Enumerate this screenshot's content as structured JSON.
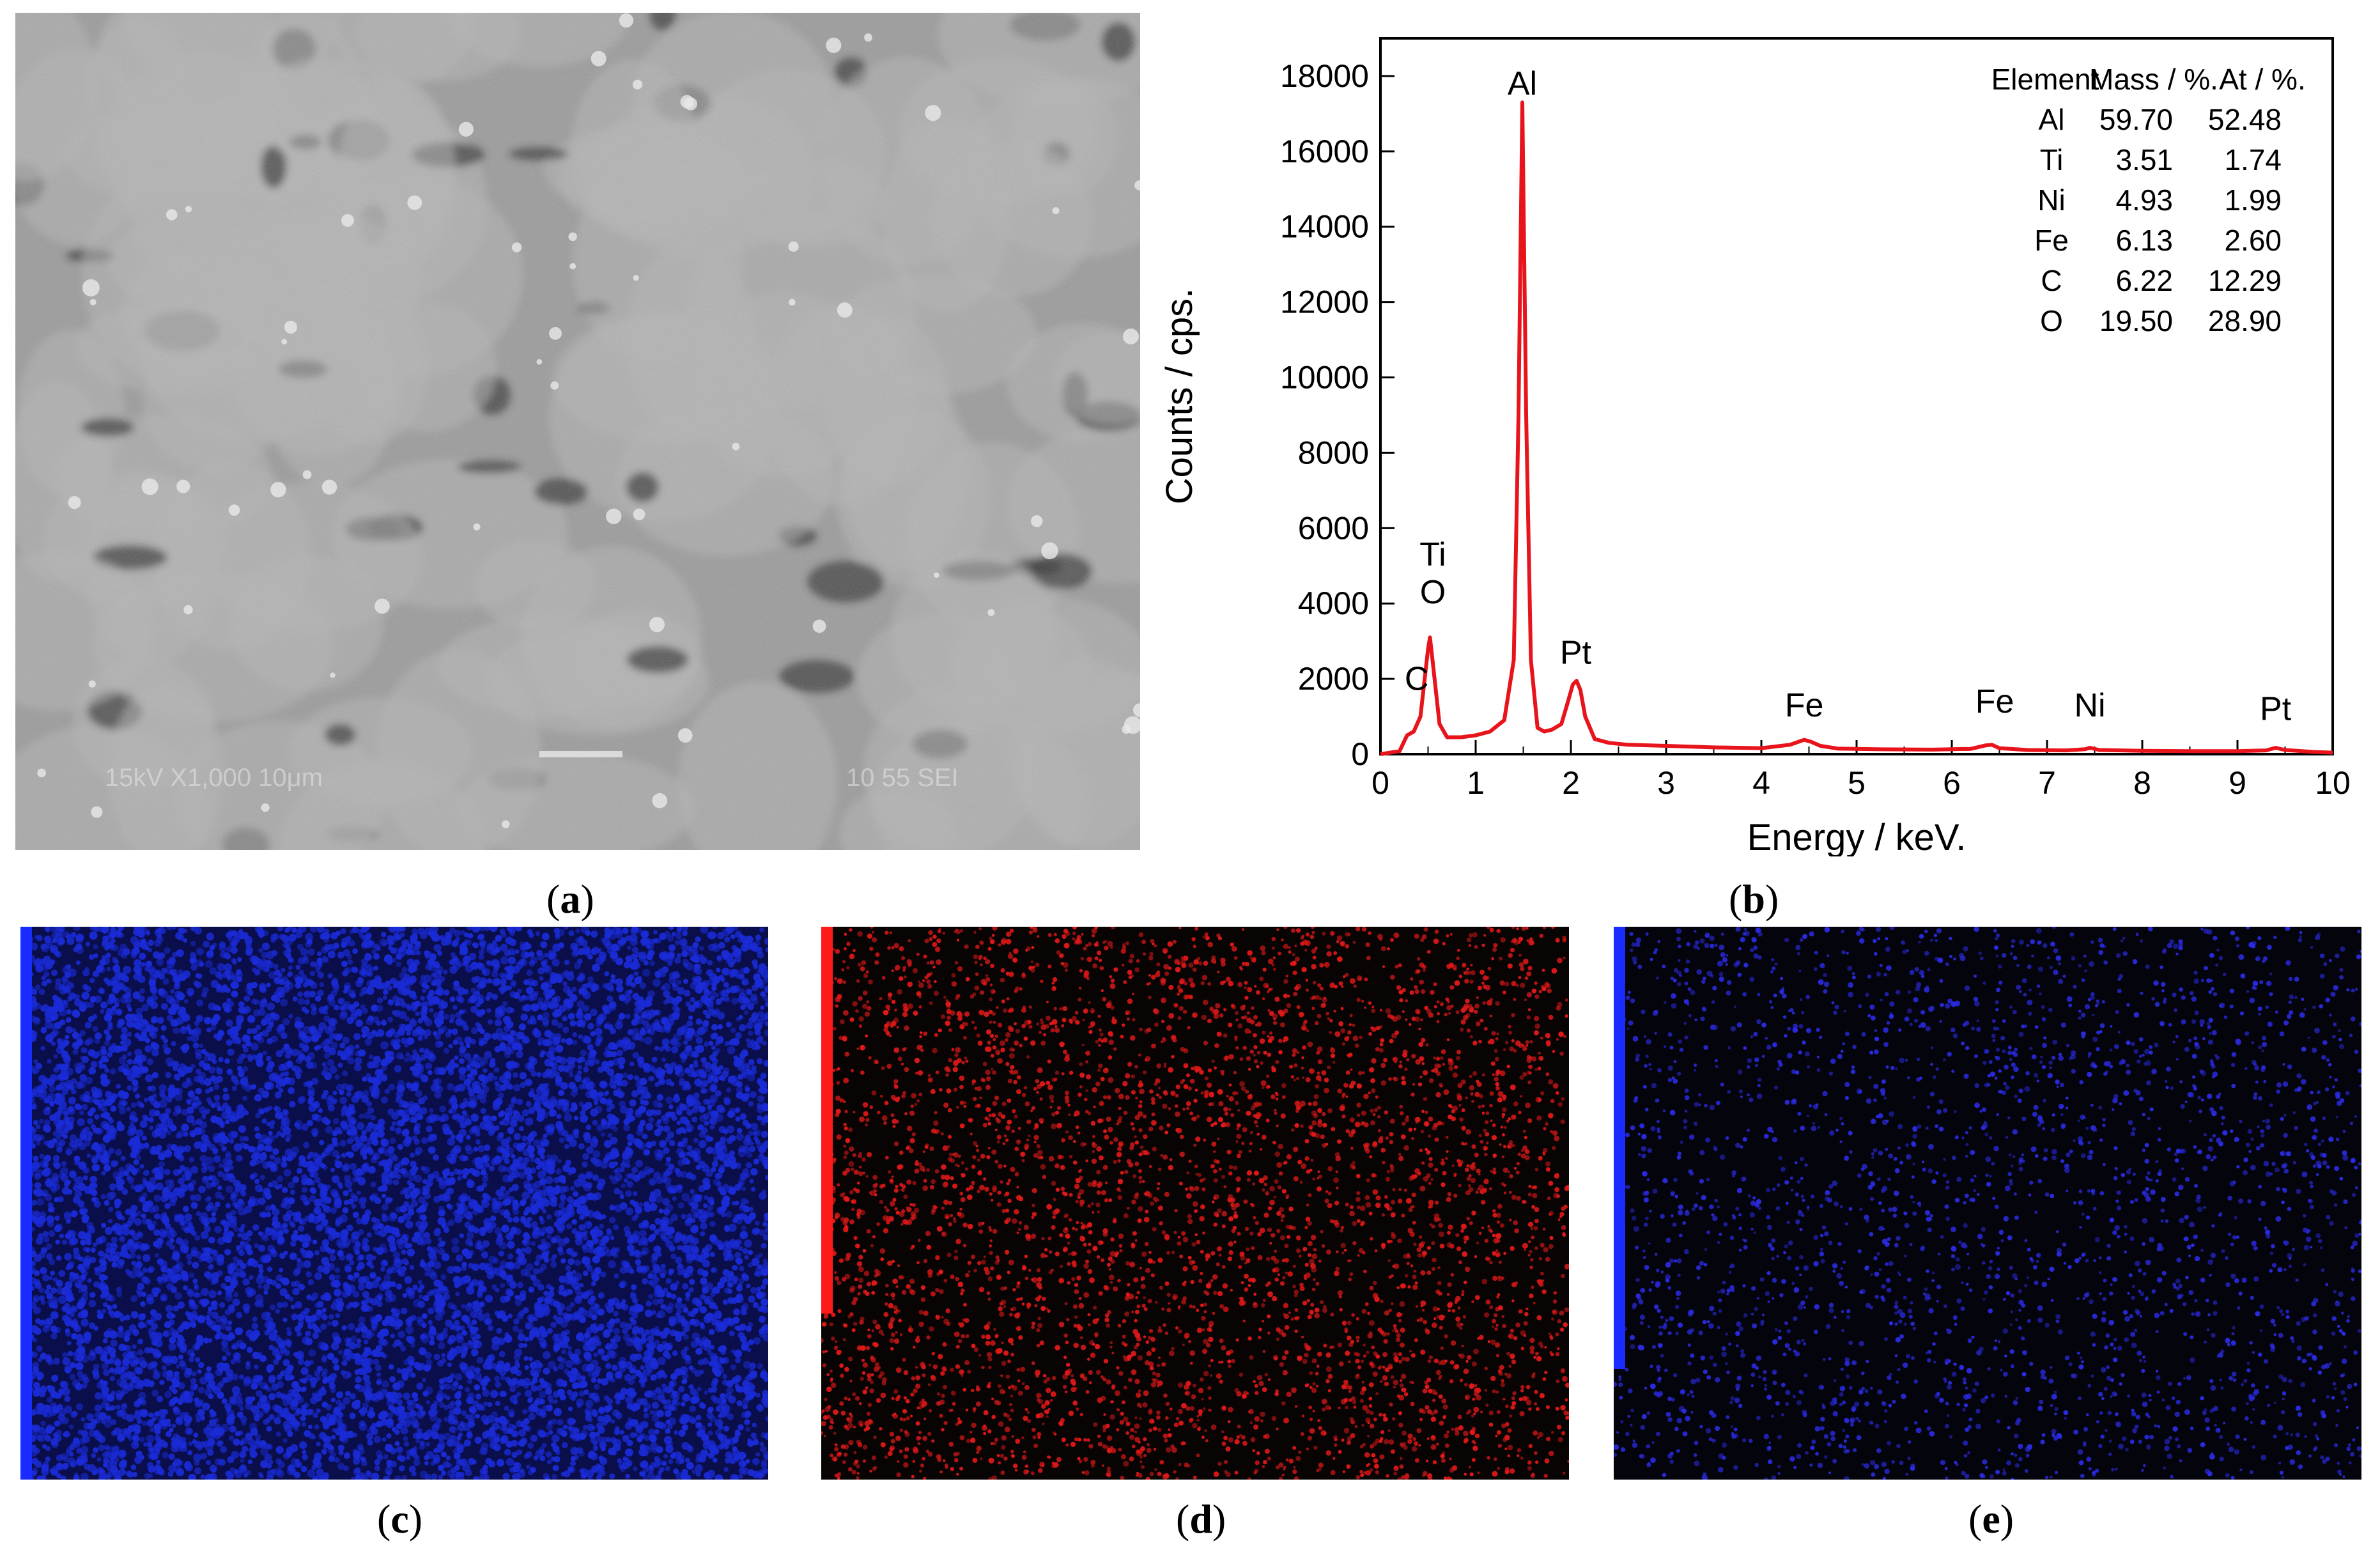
{
  "figure": {
    "panels": [
      {
        "id": "a",
        "caption": "a"
      },
      {
        "id": "b",
        "caption": "b"
      },
      {
        "id": "c",
        "caption": "c"
      },
      {
        "id": "d",
        "caption": "d"
      },
      {
        "id": "e",
        "caption": "e"
      }
    ]
  },
  "sem": {
    "annotation": "15kV  X1,000  10μm",
    "label": "10 55 SEI",
    "colors": {
      "background": "#9a9a9a",
      "grain": "#b4b4b4",
      "dark": "#2e2e2e",
      "bright": "#e8e8e8"
    }
  },
  "maps": {
    "c": {
      "dot_color": "#1a2bd6",
      "background": "#0a0e4a",
      "scalebar_color": "#1a2bff",
      "scalebar_fraction": 1.0
    },
    "d": {
      "dot_color": "#e01818",
      "background": "#080404",
      "scalebar_color": "#ff1a1a",
      "scalebar_fraction": 0.7
    },
    "e": {
      "dot_color": "#2a2ae0",
      "background": "#04040c",
      "scalebar_color": "#1a2bff",
      "scalebar_fraction": 0.8
    }
  },
  "chart_data": {
    "type": "line",
    "xlabel": "Energy / keV.",
    "ylabel": "Counts / cps.",
    "xlim": [
      0,
      10
    ],
    "ylim": [
      0,
      19000
    ],
    "xticks": [
      0,
      1,
      2,
      3,
      4,
      5,
      6,
      7,
      8,
      9,
      10
    ],
    "yticks": [
      0,
      2000,
      4000,
      6000,
      8000,
      10000,
      12000,
      14000,
      16000,
      18000
    ],
    "line_color": "#e8141c",
    "series": [
      {
        "x": [
          0.0,
          0.2,
          0.28,
          0.35,
          0.42,
          0.5,
          0.52,
          0.56,
          0.62,
          0.7,
          0.85,
          1.0,
          1.15,
          1.3,
          1.4,
          1.45,
          1.49,
          1.53,
          1.58,
          1.65,
          1.72,
          1.8,
          1.9,
          1.97,
          2.02,
          2.06,
          2.1,
          2.15,
          2.25,
          2.4,
          2.6,
          3.0,
          3.5,
          4.0,
          4.3,
          4.45,
          4.52,
          4.62,
          4.8,
          5.2,
          5.8,
          6.2,
          6.35,
          6.42,
          6.5,
          6.8,
          7.2,
          7.4,
          7.45,
          7.55,
          8.0,
          8.5,
          9.0,
          9.3,
          9.4,
          9.5,
          9.8,
          10.0
        ],
        "y": [
          0,
          80,
          500,
          600,
          1000,
          2800,
          3100,
          2200,
          800,
          450,
          450,
          500,
          600,
          900,
          2500,
          9000,
          17300,
          9000,
          2500,
          700,
          600,
          650,
          800,
          1400,
          1850,
          1950,
          1700,
          1000,
          400,
          300,
          250,
          220,
          180,
          160,
          250,
          380,
          330,
          220,
          150,
          130,
          120,
          140,
          230,
          250,
          160,
          110,
          100,
          130,
          170,
          110,
          90,
          80,
          80,
          100,
          170,
          110,
          60,
          40
        ]
      }
    ],
    "annotations": [
      {
        "text": "Al",
        "x": 1.49,
        "y": 17300
      },
      {
        "text": "Ti",
        "x": 0.55,
        "y": 4800
      },
      {
        "text": "O",
        "x": 0.55,
        "y": 3800
      },
      {
        "text": "C",
        "x": 0.38,
        "y": 1500
      },
      {
        "text": "Pt",
        "x": 2.05,
        "y": 2200
      },
      {
        "text": "Fe",
        "x": 4.45,
        "y": 800
      },
      {
        "text": "Fe",
        "x": 6.45,
        "y": 900
      },
      {
        "text": "Ni",
        "x": 7.45,
        "y": 800
      },
      {
        "text": "Pt",
        "x": 9.4,
        "y": 700
      }
    ],
    "table": {
      "headers": [
        "Element",
        "Mass / %.",
        "At / %."
      ],
      "rows": [
        [
          "Al",
          "59.70",
          "52.48"
        ],
        [
          "Ti",
          "3.51",
          "1.74"
        ],
        [
          "Ni",
          "4.93",
          "1.99"
        ],
        [
          "Fe",
          "6.13",
          "2.60"
        ],
        [
          "C",
          "6.22",
          "12.29"
        ],
        [
          "O",
          "19.50",
          "28.90"
        ]
      ]
    }
  }
}
